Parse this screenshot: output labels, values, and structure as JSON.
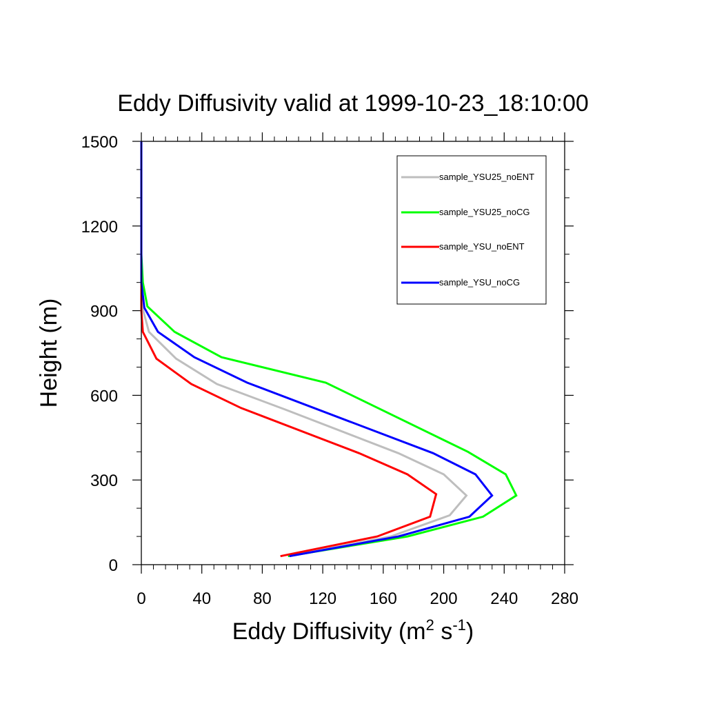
{
  "chart_data": {
    "type": "line",
    "title": "Eddy Diffusivity valid at 1999-10-23_18:10:00",
    "xlabel": "Eddy Diffusivity (m",
    "xlabel_sup1": "2",
    "xlabel_mid": " s",
    "xlabel_sup2": "-1",
    "xlabel_end": ")",
    "ylabel": "Height (m)",
    "xlim": [
      0,
      280
    ],
    "ylim": [
      0,
      1500
    ],
    "xticks": [
      "0",
      "40",
      "80",
      "120",
      "160",
      "200",
      "240",
      "280"
    ],
    "yticks": [
      "0",
      "300",
      "600",
      "900",
      "1200",
      "1500"
    ],
    "legend_position": "top-right",
    "series": [
      {
        "name": "sample_YSU25_noENT",
        "color": "#bebebe",
        "x": [
          97,
          165,
          204,
          215,
          200,
          170,
          95,
          50,
          23,
          5,
          1,
          0,
          0,
          0
        ],
        "y": [
          30,
          100,
          175,
          245,
          320,
          395,
          550,
          640,
          730,
          825,
          905,
          1000,
          1200,
          1500
        ]
      },
      {
        "name": "sample_YSU25_noCG",
        "color": "#00ff00",
        "x": [
          97,
          176,
          226,
          248,
          241,
          216,
          122,
          53,
          22,
          4,
          1,
          0,
          0,
          0
        ],
        "y": [
          30,
          100,
          170,
          245,
          320,
          400,
          645,
          735,
          825,
          915,
          1000,
          1100,
          1200,
          1500
        ]
      },
      {
        "name": "sample_YSU_noENT",
        "color": "#ff0000",
        "x": [
          92,
          156,
          191,
          195,
          176,
          144,
          66,
          33,
          10,
          1,
          0,
          0,
          0
        ],
        "y": [
          30,
          100,
          170,
          250,
          320,
          395,
          555,
          640,
          730,
          825,
          900,
          1200,
          1500
        ]
      },
      {
        "name": "sample_YSU_noCG",
        "color": "#0000ff",
        "x": [
          98,
          170,
          217,
          232,
          221,
          193,
          70,
          35,
          11,
          2,
          0,
          0,
          0
        ],
        "y": [
          30,
          100,
          170,
          245,
          320,
          395,
          645,
          735,
          825,
          910,
          1000,
          1200,
          1500
        ]
      }
    ]
  }
}
